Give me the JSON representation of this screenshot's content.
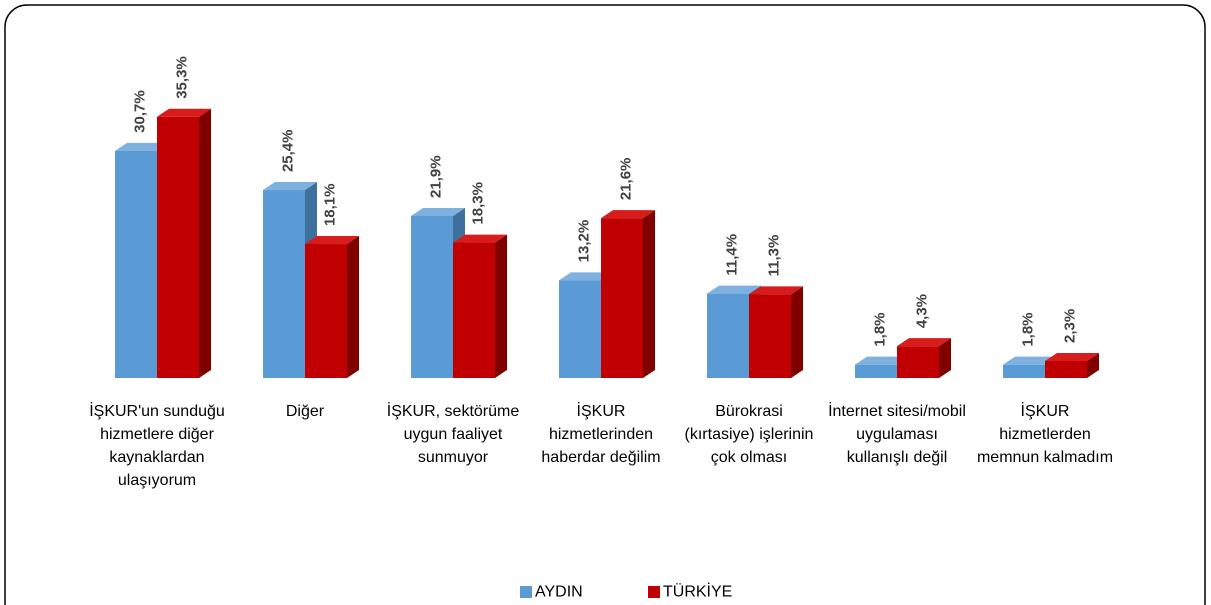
{
  "chart_data": {
    "type": "bar3d",
    "categories": [
      "İŞKUR'un sunduğu hizmetlere diğer kaynaklardan ulaşıyorum",
      "Diğer",
      "İŞKUR, sektörüme uygun faaliyet sunmuyor",
      "İŞKUR hizmetlerinden haberdar değilim",
      "Bürokrasi (kırtasiye) işlerinin çok olması",
      "İnternet sitesi/mobil uygulaması kullanışlı değil",
      "İŞKUR hizmetlerden memnun kalmadım"
    ],
    "series": [
      {
        "name": "AYDIN",
        "color": "#5b9bd5",
        "values": [
          30.7,
          25.4,
          21.9,
          13.2,
          11.4,
          1.8,
          1.8
        ],
        "value_labels": [
          "30,7%",
          "25,4%",
          "21,9%",
          "13,2%",
          "11,4%",
          "1,8%",
          "1,8%"
        ]
      },
      {
        "name": "TÜRKİYE",
        "color": "#c00000",
        "values": [
          35.3,
          18.1,
          18.3,
          21.6,
          11.3,
          4.3,
          2.3
        ],
        "value_labels": [
          "35,3%",
          "18,1%",
          "18,3%",
          "21,6%",
          "11,3%",
          "4,3%",
          "2,3%"
        ]
      }
    ],
    "legend": "bottom"
  }
}
